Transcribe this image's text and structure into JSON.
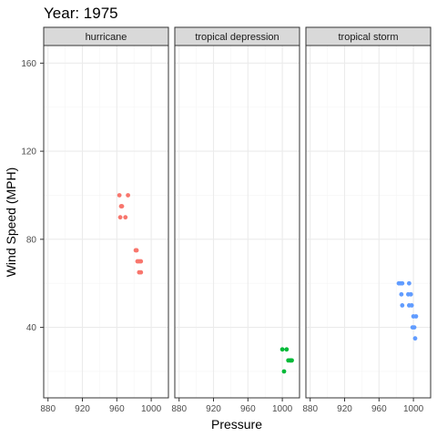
{
  "chart_data": {
    "type": "scatter",
    "title": "Year: 1975",
    "xlabel": "Pressure",
    "ylabel": "Wind Speed (MPH)",
    "xlim": [
      875,
      1020
    ],
    "ylim": [
      8,
      168
    ],
    "x_ticks": [
      880,
      920,
      960,
      1000
    ],
    "y_ticks": [
      40,
      80,
      120,
      160
    ],
    "grid": true,
    "legend": "none",
    "facets": [
      {
        "label": "hurricane",
        "color": "#F8766D",
        "points": [
          {
            "x": 963,
            "y": 100
          },
          {
            "x": 973,
            "y": 100
          },
          {
            "x": 965,
            "y": 95
          },
          {
            "x": 966,
            "y": 95
          },
          {
            "x": 964,
            "y": 90
          },
          {
            "x": 970,
            "y": 90
          },
          {
            "x": 982,
            "y": 75
          },
          {
            "x": 983,
            "y": 75
          },
          {
            "x": 984,
            "y": 70
          },
          {
            "x": 986,
            "y": 70
          },
          {
            "x": 988,
            "y": 70
          },
          {
            "x": 986,
            "y": 65
          },
          {
            "x": 988,
            "y": 65
          }
        ]
      },
      {
        "label": "tropical depression",
        "color": "#00BA38",
        "points": [
          {
            "x": 1000,
            "y": 30
          },
          {
            "x": 1005,
            "y": 30
          },
          {
            "x": 1007,
            "y": 25
          },
          {
            "x": 1009,
            "y": 25
          },
          {
            "x": 1010,
            "y": 25
          },
          {
            "x": 1011,
            "y": 25
          },
          {
            "x": 1002,
            "y": 20
          }
        ]
      },
      {
        "label": "tropical storm",
        "color": "#619CFF",
        "points": [
          {
            "x": 983,
            "y": 60
          },
          {
            "x": 985,
            "y": 60
          },
          {
            "x": 987,
            "y": 60
          },
          {
            "x": 995,
            "y": 60
          },
          {
            "x": 986,
            "y": 55
          },
          {
            "x": 994,
            "y": 55
          },
          {
            "x": 997,
            "y": 55
          },
          {
            "x": 987,
            "y": 50
          },
          {
            "x": 995,
            "y": 50
          },
          {
            "x": 998,
            "y": 50
          },
          {
            "x": 1000,
            "y": 45
          },
          {
            "x": 1003,
            "y": 45
          },
          {
            "x": 999,
            "y": 40
          },
          {
            "x": 1001,
            "y": 40
          },
          {
            "x": 1002,
            "y": 35
          }
        ]
      }
    ]
  },
  "colors": {
    "panel_border": "#333333",
    "strip_fill": "#D9D9D9",
    "grid_major": "#EBEBEB",
    "grid_minor": "#F5F5F5"
  }
}
